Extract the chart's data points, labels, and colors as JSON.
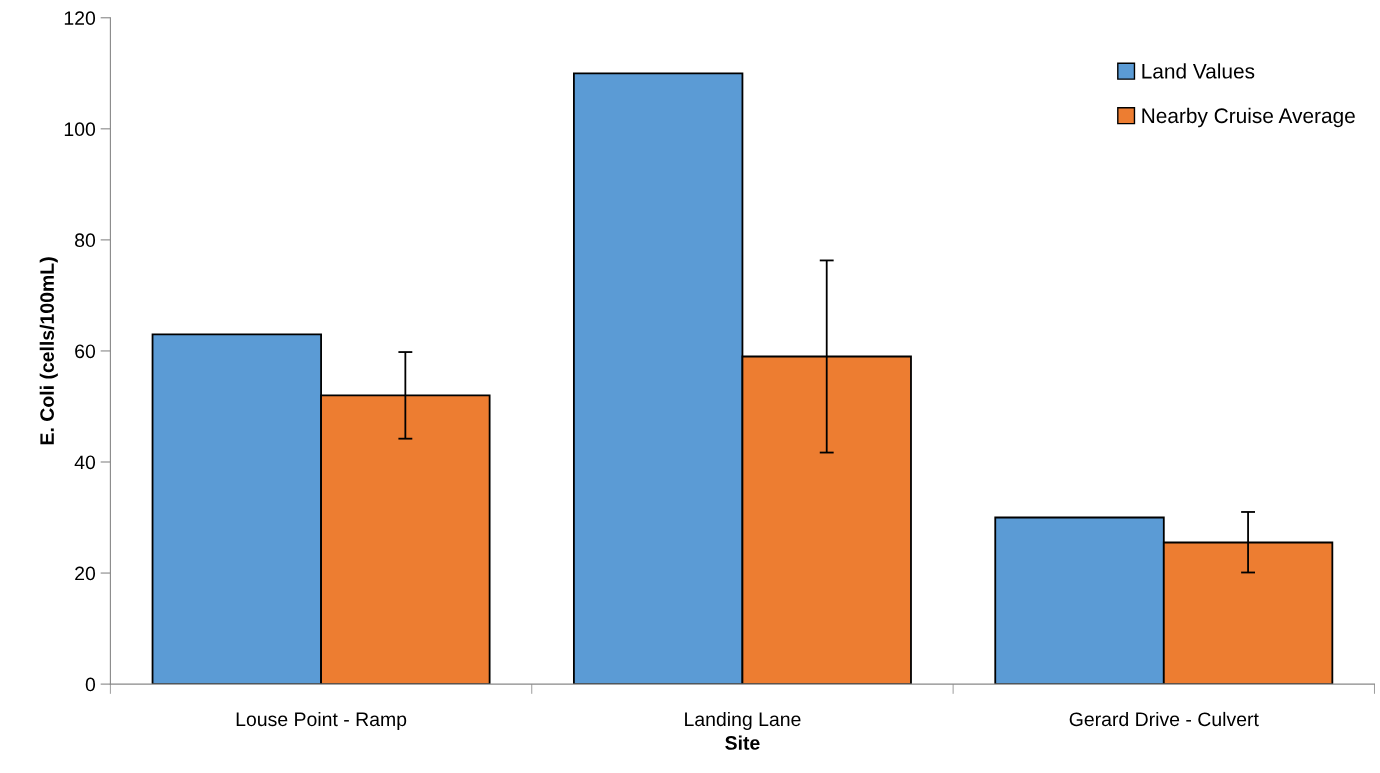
{
  "chart_data": {
    "type": "bar",
    "xlabel": "Site",
    "ylabel": "E. Coli (cells/100mL)",
    "categories": [
      "Louse Point - Ramp",
      "Landing Lane",
      "Gerard Drive - Culvert"
    ],
    "series": [
      {
        "name": "Land Values",
        "color": "#5b9bd5",
        "values": [
          63,
          110,
          30
        ]
      },
      {
        "name": "Nearby Cruise Average",
        "color": "#ed7d31",
        "values": [
          52,
          59,
          25.5
        ],
        "errors": [
          [
            44.2,
            59.8
          ],
          [
            41.7,
            76.3
          ],
          [
            20.1,
            31
          ]
        ]
      }
    ],
    "ylim": [
      0,
      120
    ],
    "yticks": [
      0,
      20,
      40,
      60,
      80,
      100,
      120
    ],
    "grid": false,
    "legend": "top right"
  }
}
